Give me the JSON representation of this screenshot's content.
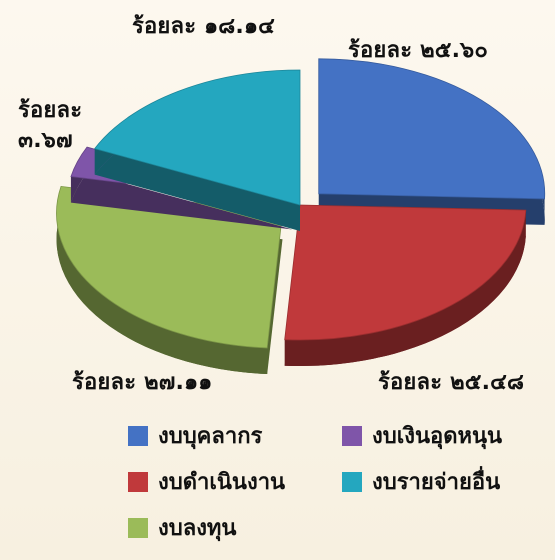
{
  "chart_data": {
    "type": "pie",
    "title": "",
    "value_format": "ร้อยละ",
    "categories": [
      "งบบุคลากร",
      "งบดำเนินงาน",
      "งบลงทุน",
      "งบเงินอุดหนุน",
      "งบรายจ่ายอื่น"
    ],
    "values": [
      25.6,
      25.48,
      27.11,
      3.67,
      18.14
    ],
    "data_labels": [
      "ร้อยละ ๒๕.๖๐",
      "ร้อยละ ๒๕.๔๘",
      "ร้อยละ ๒๗.๑๑",
      "ร้อยละ ๓.๖๗",
      "ร้อยละ ๑๘.๑๔"
    ],
    "colors": {
      "งบบุคลากร": "#4472c4",
      "งบดำเนินงาน": "#c0393b",
      "งบลงทุน": "#9bbb59",
      "งบเงินอุดหนุน": "#7f55a9",
      "งบรายจ่ายอื่น": "#24a7bf"
    },
    "legend": {
      "position": "bottom",
      "items": [
        "งบบุคลากร",
        "งบเงินอุดหนุน",
        "งบดำเนินงาน",
        "งบรายจ่ายอื่น",
        "งบลงทุน"
      ]
    },
    "style": "3d-exploded-pie"
  }
}
